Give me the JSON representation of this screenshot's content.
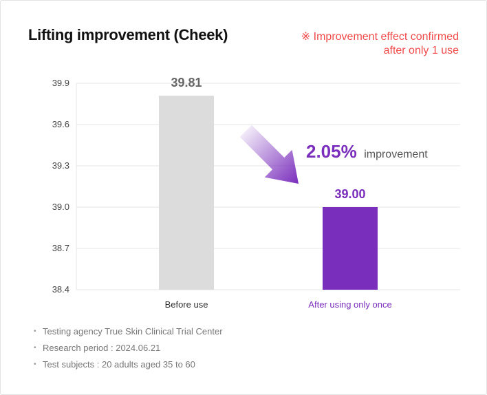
{
  "title": "Lifting improvement (Cheek)",
  "note": {
    "line1": "※ Improvement effect confirmed",
    "line2": "after only 1 use",
    "color": "#f04a4a"
  },
  "chart_data": {
    "type": "bar",
    "title": "",
    "xlabel": "",
    "ylabel": "",
    "categories": [
      "Before use",
      "After using only once"
    ],
    "values": [
      39.81,
      39.0
    ],
    "value_labels": [
      "39.81",
      "39.00"
    ],
    "colors": [
      "#dcdcdc",
      "#7a2ebc"
    ],
    "label_colors": [
      "#666666",
      "#7a2ebc"
    ],
    "category_label_colors": [
      "#333333",
      "#7a2ebc"
    ],
    "ylim": [
      38.4,
      39.9
    ],
    "yticks": [
      "39.9",
      "39.6",
      "39.3",
      "39.0",
      "38.7",
      "38.4"
    ],
    "grid": true,
    "annotation": {
      "value": "2.05%",
      "text": "improvement",
      "color": "#7a2ebc",
      "arrow": "down-right"
    }
  },
  "footnotes": [
    "Testing agency True Skin Clinical Trial Center",
    "Research period : 2024.06.21",
    "Test subjects : 20 adults aged 35 to 60"
  ]
}
